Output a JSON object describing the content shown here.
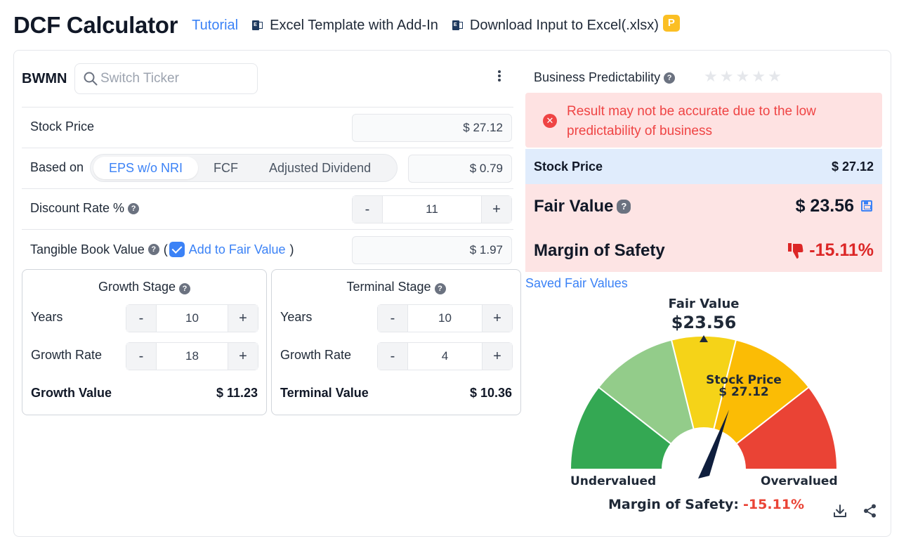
{
  "header": {
    "title": "DCF Calculator",
    "tutorial": "Tutorial",
    "excel_template": "Excel Template with Add-In",
    "download": "Download Input to Excel(.xlsx)",
    "premium_badge": "P"
  },
  "ticker": {
    "symbol": "BWMN",
    "search_placeholder": "Switch Ticker"
  },
  "form": {
    "stock_price_label": "Stock Price",
    "stock_price_value": "$ 27.12",
    "based_on_label": "Based on",
    "based_on_options": [
      "EPS w/o NRI",
      "FCF",
      "Adjusted Dividend"
    ],
    "based_on_selected": "EPS w/o NRI",
    "based_on_value": "$ 0.79",
    "discount_rate_label": "Discount Rate %",
    "discount_rate_value": "11",
    "tbv_label": "Tangible Book Value",
    "tbv_open": "(",
    "tbv_add": "Add to Fair Value",
    "tbv_close": ")",
    "tbv_value": "$ 1.97",
    "minus": "-",
    "plus": "+"
  },
  "growth_stage": {
    "title": "Growth Stage",
    "years_label": "Years",
    "years_value": "10",
    "rate_label": "Growth Rate",
    "rate_value": "18",
    "value_label": "Growth Value",
    "value": "$ 11.23"
  },
  "terminal_stage": {
    "title": "Terminal Stage",
    "years_label": "Years",
    "years_value": "10",
    "rate_label": "Growth Rate",
    "rate_value": "4",
    "value_label": "Terminal Value",
    "value": "$ 10.36"
  },
  "result": {
    "predictability_label": "Business Predictability",
    "predictability_stars": 0,
    "alert": "Result may not be accurate due to the low predictability of business",
    "stock_price_label": "Stock Price",
    "stock_price_value": "$ 27.12",
    "fair_value_label": "Fair Value",
    "fair_value": "$ 23.56",
    "mos_label": "Margin of Safety",
    "mos_value": "-15.11%",
    "saved_link": "Saved Fair Values"
  },
  "gauge": {
    "fair_value_title": "Fair Value",
    "fair_value": "$23.56",
    "stock_price_title": "Stock Price",
    "stock_price": "$ 27.12",
    "left_label": "Undervalued",
    "right_label": "Overvalued",
    "mos_label": "Margin of Safety:",
    "mos_value": "-15.11%",
    "colors": [
      "#34a853",
      "#93cc8a",
      "#f5d318",
      "#fbbc05",
      "#ea4335"
    ]
  }
}
